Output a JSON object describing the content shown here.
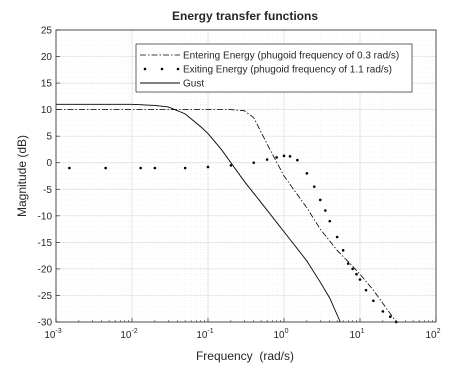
{
  "chart_data": {
    "type": "line",
    "title": "Energy transfer functions",
    "xlabel": "Frequency  (rad/s)",
    "ylabel": "Magnitude (dB)",
    "x_scale": "log",
    "xlim": [
      0.001,
      100
    ],
    "ylim": [
      -30,
      25
    ],
    "x_ticks": [
      0.001,
      0.01,
      0.1,
      1,
      10,
      100
    ],
    "x_tick_labels": [
      {
        "base": "10",
        "exp": "-3"
      },
      {
        "base": "10",
        "exp": "-2"
      },
      {
        "base": "10",
        "exp": "-1"
      },
      {
        "base": "10",
        "exp": "0"
      },
      {
        "base": "10",
        "exp": "1"
      },
      {
        "base": "10",
        "exp": "2"
      }
    ],
    "y_ticks": [
      25,
      20,
      15,
      10,
      5,
      0,
      -5,
      -10,
      -15,
      -20,
      -25,
      -30
    ],
    "y_tick_labels": [
      "25",
      "20",
      "15",
      "10",
      "5",
      "0",
      "-5",
      "-10",
      "-15",
      "-20",
      "-25",
      "-30"
    ],
    "grid": true,
    "minor_grid": true,
    "legend_position": "top-right",
    "colors": {
      "series": "#000000",
      "grid": "#dcdcdc",
      "minor_grid": "#efefef",
      "axes": "#262626"
    },
    "series": [
      {
        "name": "Entering Energy (phugoid frequency of 0.3 rad/s)",
        "style": "dash-dot",
        "x": [
          0.001,
          0.01,
          0.05,
          0.1,
          0.2,
          0.3,
          0.4,
          0.6,
          1,
          2,
          3,
          5,
          8,
          10,
          15,
          20,
          30
        ],
        "y": [
          10,
          10,
          10,
          10,
          10,
          9.8,
          8.5,
          3.5,
          -2.5,
          -8.5,
          -12.5,
          -16.5,
          -19.5,
          -21,
          -24,
          -26.5,
          -30
        ]
      },
      {
        "name": "Exiting Energy (phugoid frequency of 1.1 rad/s)",
        "style": "dotted",
        "x": [
          0.0015,
          0.0045,
          0.013,
          0.02,
          0.05,
          0.1,
          0.2,
          0.4,
          0.6,
          0.8,
          1.0,
          1.2,
          1.5,
          2,
          2.5,
          3,
          3.5,
          4,
          5,
          6,
          7,
          8,
          9,
          10,
          12,
          15,
          20,
          25,
          30
        ],
        "y": [
          -1,
          -1,
          -1,
          -1,
          -1,
          -0.8,
          -0.5,
          0,
          0.6,
          1.0,
          1.3,
          1.2,
          0.5,
          -2,
          -4.5,
          -7,
          -9,
          -11,
          -14,
          -16.5,
          -19,
          -20,
          -21,
          -22,
          -24,
          -26,
          -28,
          -29,
          -30
        ]
      },
      {
        "name": "Gust",
        "style": "solid",
        "x": [
          0.001,
          0.005,
          0.01,
          0.02,
          0.03,
          0.05,
          0.08,
          0.1,
          0.15,
          0.2,
          0.3,
          0.5,
          1,
          2,
          3,
          4,
          5.5
        ],
        "y": [
          11,
          11,
          11,
          10.8,
          10.5,
          9.2,
          6.8,
          5.5,
          2.5,
          0,
          -3.5,
          -7.5,
          -13,
          -18.5,
          -22.5,
          -25.5,
          -30
        ]
      }
    ]
  }
}
